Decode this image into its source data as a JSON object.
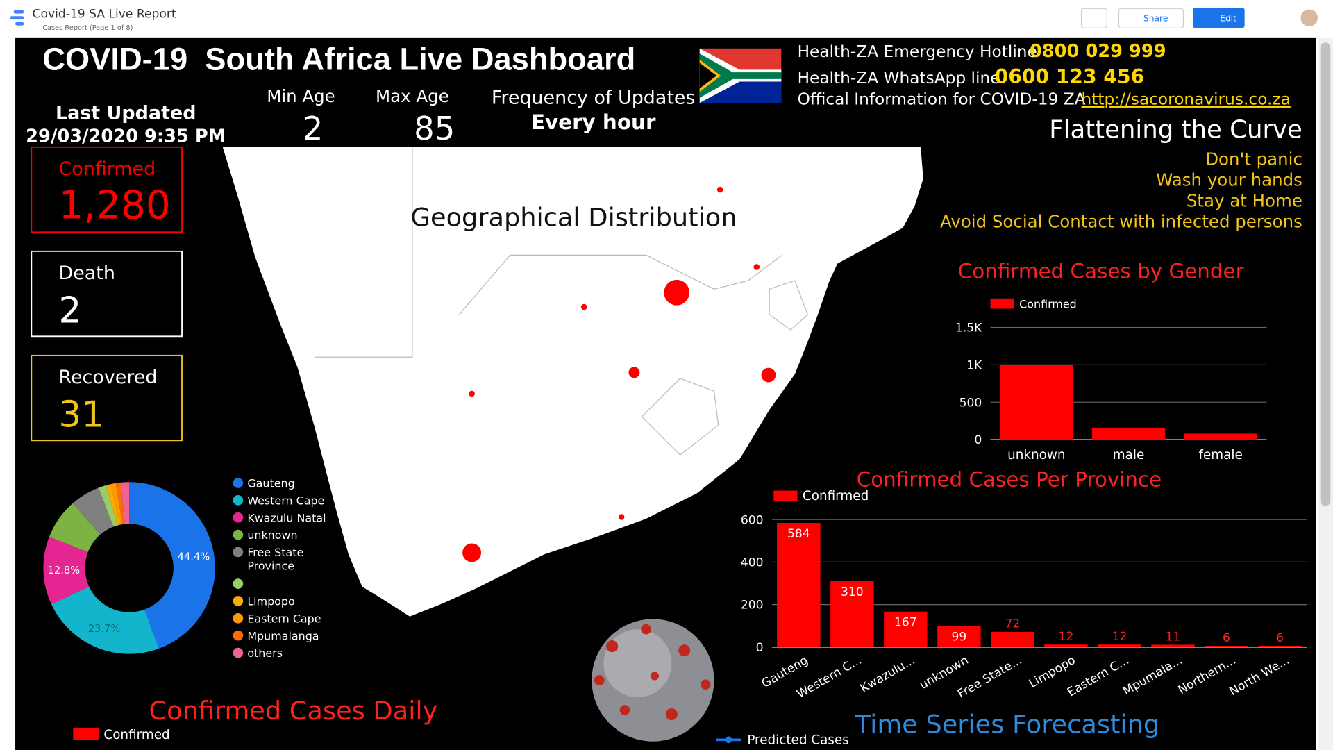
{
  "app": {
    "title": "Covid-19 SA Live Report",
    "breadcrumb": "Cases Report (Page 1 of 8)",
    "share": "Share",
    "edit": "Edit"
  },
  "dashboard": {
    "title": "COVID-19  South Africa Live Dashboard",
    "last_updated_label": "Last Updated",
    "last_updated": "29/03/2020 9:35 PM",
    "min_age_label": "Min Age",
    "min_age": 2,
    "max_age_label": "Max Age",
    "max_age": 85,
    "frequency_label": "Frequency of Updates",
    "frequency": "Every hour",
    "hotline_label": "Health-ZA Emergency Hotline",
    "hotline": "0800 029 999",
    "whatsapp_label": "Health-ZA WhatsApp line",
    "whatsapp": "0600 123 456",
    "info_label": "Offical Information for COVID-19 ZA",
    "info_url": "http://sacoronavirus.co.za",
    "curve_title": "Flattening the Curve",
    "advice": [
      "Don't panic",
      "Wash your hands",
      "Stay at Home",
      "Avoid Social Contact with infected persons"
    ],
    "map_title": "Geographical Distribution",
    "daily_title": "Confirmed Cases Daily",
    "daily_legend": "Confirmed",
    "forecast_title": "Time Series Forecasting",
    "forecast_legend": "Predicted Cases"
  },
  "kpis": [
    {
      "label": "Confirmed",
      "value": "1,280",
      "color": "#ff0000"
    },
    {
      "label": "Death",
      "value": 2,
      "color": "#ffffff"
    },
    {
      "label": "Recovered",
      "value": 31,
      "color": "#f0c419"
    }
  ],
  "gender_chart": {
    "type": "bar",
    "title": "Confirmed Cases by Gender",
    "legend": "Confirmed",
    "color": "#ff0000",
    "categories": [
      "unknown",
      "male",
      "female"
    ],
    "values": [
      1000,
      160,
      80
    ],
    "ylim": [
      0,
      1500
    ],
    "yticks": [
      0,
      500,
      {
        "value": 1000,
        "label": "1K"
      },
      {
        "value": 1500,
        "label": "1.5K"
      }
    ]
  },
  "province_chart": {
    "type": "bar",
    "title": "Confirmed Cases Per Province",
    "legend": "Confirmed",
    "color": "#ff0000",
    "categories": [
      "Gauteng",
      "Western C...",
      "Kwazulu...",
      "unknown",
      "Free State...",
      "Limpopo",
      "Eastern C...",
      "Mpumala...",
      "Northern...",
      "North We..."
    ],
    "values": [
      584,
      310,
      167,
      99,
      72,
      12,
      12,
      11,
      6,
      6
    ],
    "ylim": [
      0,
      600
    ],
    "yticks": [
      0,
      200,
      400,
      600
    ]
  },
  "donut_chart": {
    "type": "pie",
    "categories": [
      "Gauteng",
      "Western Cape",
      "Kwazulu Natal",
      "unknown",
      "Free State Province",
      null,
      "Limpopo",
      "Eastern Cape",
      "Mpumalanga",
      "others"
    ],
    "values": [
      44.4,
      23.7,
      12.8,
      7.7,
      5.6,
      1.5,
      0.9,
      0.9,
      0.9,
      1.6
    ],
    "value_labels": [
      "44.4%",
      "23.7%",
      "12.8%",
      null,
      null,
      null,
      null,
      null,
      null,
      null
    ],
    "colors": [
      "#1a73e8",
      "#12b5cb",
      "#e52592",
      "#7cb342",
      "#808080",
      "#9ccc65",
      "#f9ab00",
      "#ff9800",
      "#ff6d00",
      "#f06292"
    ]
  }
}
